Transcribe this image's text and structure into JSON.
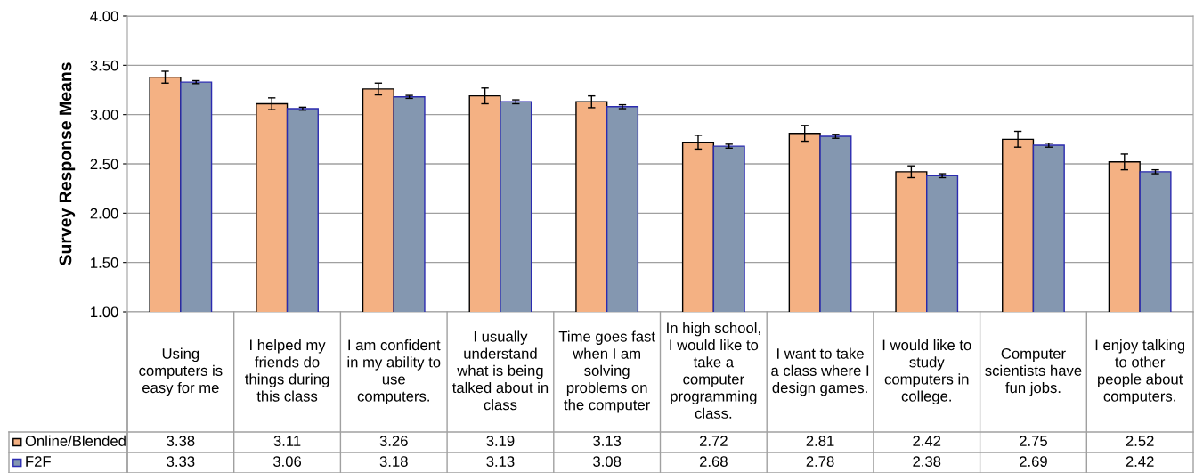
{
  "chart_data": {
    "type": "bar",
    "ylabel": "Survey Response Means",
    "categories": [
      "Using\ncomputers is\neasy for me",
      "I helped my\nfriends do\nthings during\nthis class",
      "I am confident\nin my ability to\nuse\ncomputers.",
      "I usually\nunderstand\nwhat is being\ntalked about in\nclass",
      "Time goes fast\nwhen I am\nsolving\nproblems on\nthe computer",
      "In high school,\nI would like to\ntake a\ncomputer\nprogramming\nclass.",
      "I want to take\na class where I\ndesign games.",
      "I would like to\nstudy\ncomputers in\ncollege.",
      "Computer\nscientists have\nfun jobs.",
      "I enjoy talking\nto other\npeople about\ncomputers."
    ],
    "series": [
      {
        "name": "Online/Blended",
        "color": "#f4b183",
        "values": [
          3.38,
          3.11,
          3.26,
          3.19,
          3.13,
          2.72,
          2.81,
          2.42,
          2.75,
          2.52
        ],
        "errors": [
          0.06,
          0.06,
          0.06,
          0.08,
          0.06,
          0.07,
          0.08,
          0.06,
          0.08,
          0.08
        ]
      },
      {
        "name": "F2F",
        "color": "#8497b0",
        "values": [
          3.33,
          3.06,
          3.18,
          3.13,
          3.08,
          2.68,
          2.78,
          2.38,
          2.69,
          2.42
        ],
        "errors": [
          0.015,
          0.015,
          0.015,
          0.02,
          0.02,
          0.02,
          0.02,
          0.02,
          0.02,
          0.02
        ]
      }
    ],
    "ylim": [
      1.0,
      4.0
    ],
    "yticks": [
      {
        "value": 1.0,
        "label": "1.00"
      },
      {
        "value": 1.5,
        "label": "1.50"
      },
      {
        "value": 2.0,
        "label": "2.00"
      },
      {
        "value": 2.5,
        "label": "2.50"
      },
      {
        "value": 3.0,
        "label": "3.00"
      },
      {
        "value": 3.5,
        "label": "3.50"
      },
      {
        "value": 4.0,
        "label": "4.00"
      }
    ],
    "grid": "y",
    "legend": "bottom",
    "data_labels": true
  }
}
